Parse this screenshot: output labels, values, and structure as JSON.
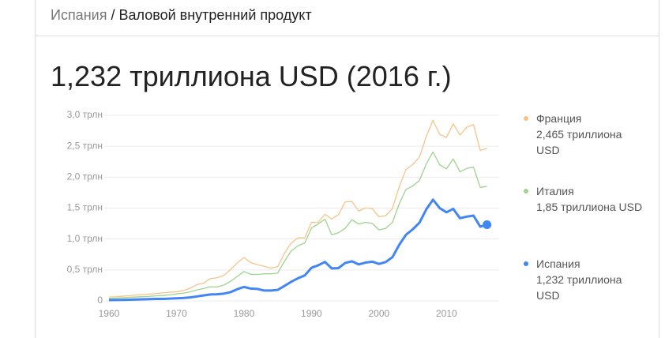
{
  "breadcrumb": [
    "Испания",
    "Валовой внутренний продукт"
  ],
  "breadcrumb_separator": "/",
  "chart_data": {
    "type": "line",
    "title": "1,232 триллиона USD (2016 г.)",
    "x": [
      1960,
      1961,
      1962,
      1963,
      1964,
      1965,
      1966,
      1967,
      1968,
      1969,
      1970,
      1971,
      1972,
      1973,
      1974,
      1975,
      1976,
      1977,
      1978,
      1979,
      1980,
      1981,
      1982,
      1983,
      1984,
      1985,
      1986,
      1987,
      1988,
      1989,
      1990,
      1991,
      1992,
      1993,
      1994,
      1995,
      1996,
      1997,
      1998,
      1999,
      2000,
      2001,
      2002,
      2003,
      2004,
      2005,
      2006,
      2007,
      2008,
      2009,
      2010,
      2011,
      2012,
      2013,
      2014,
      2015,
      2016
    ],
    "series": [
      {
        "name": "Франция",
        "value_label": "2,465 триллиона USD",
        "color": "#f5c48a",
        "values": [
          0.062,
          0.067,
          0.076,
          0.085,
          0.094,
          0.102,
          0.11,
          0.119,
          0.129,
          0.141,
          0.148,
          0.165,
          0.204,
          0.264,
          0.286,
          0.36,
          0.373,
          0.41,
          0.506,
          0.614,
          0.701,
          0.617,
          0.585,
          0.559,
          0.53,
          0.553,
          0.771,
          0.935,
          1.019,
          1.019,
          1.269,
          1.27,
          1.401,
          1.323,
          1.394,
          1.601,
          1.606,
          1.452,
          1.503,
          1.493,
          1.362,
          1.377,
          1.495,
          1.846,
          2.124,
          2.204,
          2.326,
          2.657,
          2.918,
          2.69,
          2.643,
          2.862,
          2.681,
          2.809,
          2.849,
          2.433,
          2.465
        ]
      },
      {
        "name": "Италия",
        "value_label": "1,85 триллиона USD",
        "color": "#9fd28f",
        "values": [
          0.04,
          0.045,
          0.05,
          0.058,
          0.063,
          0.068,
          0.073,
          0.081,
          0.087,
          0.097,
          0.113,
          0.124,
          0.145,
          0.175,
          0.199,
          0.228,
          0.225,
          0.256,
          0.315,
          0.394,
          0.475,
          0.43,
          0.426,
          0.439,
          0.437,
          0.45,
          0.642,
          0.806,
          0.892,
          0.935,
          1.178,
          1.244,
          1.321,
          1.069,
          1.101,
          1.174,
          1.313,
          1.242,
          1.27,
          1.253,
          1.147,
          1.172,
          1.271,
          1.57,
          1.801,
          1.858,
          1.949,
          2.213,
          2.408,
          2.199,
          2.136,
          2.294,
          2.087,
          2.141,
          2.162,
          1.836,
          1.85
        ]
      },
      {
        "name": "Испания",
        "value_label": "1,232 триллиона USD",
        "color": "#4285f4",
        "values": [
          0.012,
          0.014,
          0.016,
          0.019,
          0.022,
          0.025,
          0.029,
          0.032,
          0.032,
          0.036,
          0.041,
          0.046,
          0.056,
          0.071,
          0.088,
          0.104,
          0.107,
          0.117,
          0.141,
          0.189,
          0.225,
          0.199,
          0.193,
          0.167,
          0.168,
          0.178,
          0.242,
          0.309,
          0.366,
          0.411,
          0.535,
          0.575,
          0.63,
          0.525,
          0.53,
          0.613,
          0.64,
          0.589,
          0.619,
          0.634,
          0.598,
          0.628,
          0.708,
          0.907,
          1.069,
          1.157,
          1.264,
          1.479,
          1.636,
          1.499,
          1.432,
          1.488,
          1.336,
          1.362,
          1.379,
          1.199,
          1.232
        ]
      }
    ],
    "xlim": [
      1959.3,
      2017.8
    ],
    "xticks": [
      1960,
      1970,
      1980,
      1990,
      2000,
      2010
    ],
    "ylim": [
      0,
      3
    ],
    "yticks": [
      0,
      {
        "value": 0.5,
        "label": "0,5 трлн"
      },
      {
        "value": 1,
        "label": "1,0 трлн"
      },
      {
        "value": 1.5,
        "label": "1,5 трлн"
      },
      {
        "value": 2,
        "label": "2,0 трлн"
      },
      {
        "value": 2.5,
        "label": "2,5 трлн"
      },
      {
        "value": 3,
        "label": "3,0 трлн"
      }
    ],
    "grid": true
  }
}
